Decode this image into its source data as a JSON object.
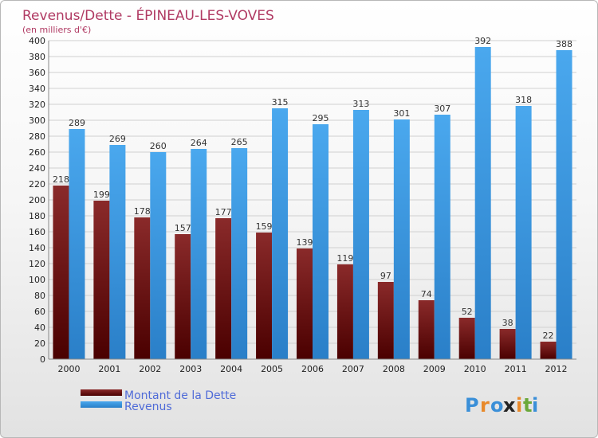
{
  "chart_data": {
    "type": "bar",
    "title": "Revenus/Dette - ÉPINEAU-LES-VOVES",
    "subtitle": "(en milliers d'€)",
    "categories": [
      "2000",
      "2001",
      "2002",
      "2003",
      "2004",
      "2005",
      "2006",
      "2007",
      "2008",
      "2009",
      "2010",
      "2011",
      "2012"
    ],
    "series": [
      {
        "name": "Montant de la Dette",
        "color": "#7a1010",
        "values": [
          218,
          199,
          178,
          157,
          177,
          159,
          139,
          119,
          97,
          74,
          52,
          38,
          22
        ]
      },
      {
        "name": "Revenus",
        "color": "#3a96e0",
        "values": [
          289,
          269,
          260,
          264,
          265,
          315,
          295,
          313,
          301,
          307,
          392,
          318,
          388
        ]
      }
    ],
    "ylim": [
      0,
      400
    ],
    "ytick_step": 20,
    "grid": true,
    "legend_position": "bottom-left"
  },
  "brand": {
    "letters": [
      "P",
      "r",
      "o",
      "x",
      "i",
      "t",
      "i"
    ],
    "colors": [
      "#3a8fd8",
      "#e8892a",
      "#3a8fd8",
      "#222222",
      "#e8892a",
      "#6aa83a",
      "#3a8fd8"
    ]
  }
}
